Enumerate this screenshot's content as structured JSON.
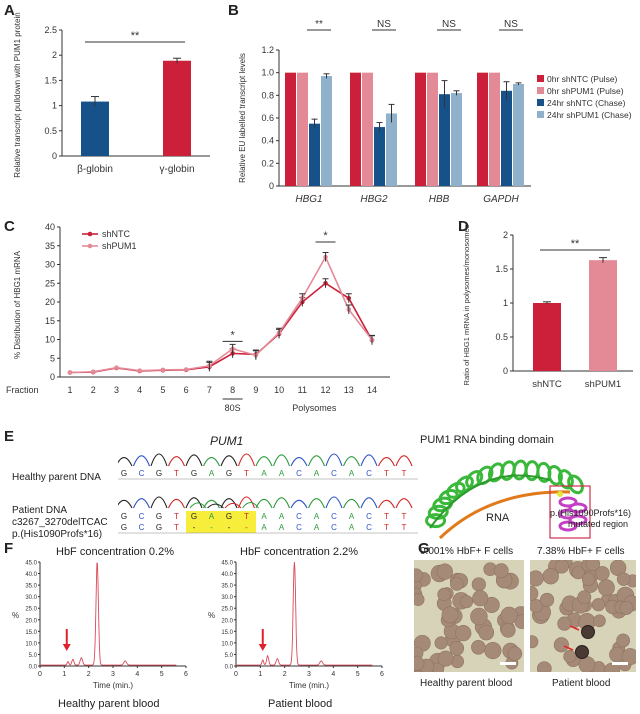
{
  "panels": {
    "A": {
      "letter": "A"
    },
    "B": {
      "letter": "B"
    },
    "C": {
      "letter": "C"
    },
    "D": {
      "letter": "D"
    },
    "E": {
      "letter": "E"
    },
    "F": {
      "letter": "F"
    },
    "G": {
      "letter": "G"
    }
  },
  "colors": {
    "red": "#cc1f3a",
    "pink": "#e48a97",
    "blue": "#17518a",
    "lightblue": "#8fb1cc",
    "chrom": "#d94b5a",
    "arrow": "#e0202a"
  },
  "chart_data": [
    {
      "id": "A",
      "type": "bar",
      "ylabel": "Relative transcript pulldown with PUM1 protein",
      "categories": [
        "β-globin",
        "γ-globin"
      ],
      "values": [
        1.08,
        1.89
      ],
      "errors": [
        0.1,
        0.05
      ],
      "bar_colors": [
        "#17518a",
        "#cc1f3a"
      ],
      "ylim": [
        0,
        2.5
      ],
      "yticks": [
        "0",
        "0.5",
        "1",
        "1.5",
        "2",
        "2.5"
      ],
      "significance": "**"
    },
    {
      "id": "B",
      "type": "bar",
      "ylabel": "Relative EU labelled transcript levels",
      "categories": [
        "HBG1",
        "HBG2",
        "HBB",
        "GAPDH"
      ],
      "series": [
        {
          "name": "0hr shNTC (Pulse)",
          "values": [
            1,
            1,
            1,
            1
          ],
          "errors": [
            0,
            0,
            0,
            0
          ]
        },
        {
          "name": "0hr shPUM1 (Pulse)",
          "values": [
            1,
            1,
            1,
            1
          ],
          "errors": [
            0,
            0,
            0,
            0
          ]
        },
        {
          "name": "24hr shNTC (Chase)",
          "values": [
            0.55,
            0.52,
            0.81,
            0.84
          ],
          "errors": [
            0.04,
            0.04,
            0.12,
            0.08
          ]
        },
        {
          "name": "24hr shPUM1 (Chase)",
          "values": [
            0.97,
            0.64,
            0.82,
            0.9
          ],
          "errors": [
            0.02,
            0.08,
            0.02,
            0.01
          ]
        }
      ],
      "ylim": [
        0,
        1.2
      ],
      "yticks": [
        "0",
        "0.2",
        "0.4",
        "0.6",
        "0.8",
        "1.0",
        "1.2"
      ],
      "significance": [
        "**",
        "NS",
        "NS",
        "NS"
      ]
    },
    {
      "id": "C",
      "type": "line",
      "ylabel": "% Distribution of HBG1 mRNA",
      "xlabel": "Fraction",
      "x": [
        1,
        2,
        3,
        4,
        5,
        6,
        7,
        8,
        9,
        10,
        11,
        12,
        13,
        14
      ],
      "series": [
        {
          "name": "shNTC",
          "values": [
            1.2,
            1.3,
            2.4,
            1.6,
            1.8,
            1.9,
            2.7,
            6.3,
            6.0,
            11.5,
            20.0,
            25.0,
            21.0,
            9.8
          ]
        },
        {
          "name": "shPUM1",
          "values": [
            1.2,
            1.4,
            2.5,
            1.7,
            1.9,
            2.0,
            3.0,
            7.5,
            5.8,
            11.8,
            21.0,
            32.0,
            18.0,
            9.9
          ]
        }
      ],
      "ylim": [
        0,
        40
      ],
      "yticks": [
        "0",
        "5",
        "10",
        "15",
        "20",
        "25",
        "30",
        "35",
        "40"
      ],
      "significance": [
        {
          "fraction": 8,
          "mark": "*"
        },
        {
          "fraction": 12,
          "mark": "*"
        }
      ],
      "annotations": {
        "monosome": "80S",
        "polysome": "Polysomes"
      }
    },
    {
      "id": "D",
      "type": "bar",
      "ylabel": "Ratio of HBG1 mRNA in polysomes/monosomes",
      "categories": [
        "shNTC",
        "shPUM1"
      ],
      "values": [
        1.0,
        1.63
      ],
      "errors": [
        0.01,
        0.03
      ],
      "bar_colors": [
        "#cc1f3a",
        "#e48a97"
      ],
      "ylim": [
        0,
        2.0
      ],
      "yticks": [
        "0",
        "0.5",
        "1",
        "1.5",
        "2"
      ],
      "significance": "**"
    },
    {
      "id": "F1",
      "type": "line",
      "title": "HbF concentration 0.2%",
      "ylabel": "%",
      "xlabel": "Time (min.)",
      "x": [
        0,
        1,
        2,
        3,
        4,
        5,
        6
      ],
      "ylim": [
        0,
        45
      ],
      "yticks": [
        "0.0",
        "2.5",
        "5.0",
        "7.5",
        "10.0",
        "12.5",
        "15.0",
        "17.5",
        "20.0",
        "22.5",
        "25.0",
        "27.5",
        "30.0",
        "32.5",
        "35.0",
        "37.5",
        "40.0",
        "42.5",
        "45.0"
      ],
      "xticks": [
        "0",
        "1",
        "2",
        "3",
        "4",
        "5",
        "6"
      ],
      "caption": "Healthy parent blood"
    },
    {
      "id": "F2",
      "type": "line",
      "title": "HbF concentration 2.2%",
      "ylabel": "%",
      "xlabel": "Time (min.)",
      "x": [
        0,
        1,
        2,
        3,
        4,
        5,
        6
      ],
      "ylim": [
        0,
        45
      ],
      "yticks": [
        "0.0",
        "2.5",
        "5.0",
        "7.5",
        "10.0",
        "12.5",
        "15.0",
        "17.5",
        "20.0",
        "22.5",
        "25.0",
        "27.5",
        "30.0",
        "32.5",
        "35.0",
        "37.5",
        "40.0",
        "42.5",
        "45.0"
      ],
      "xticks": [
        "0",
        "1",
        "2",
        "3",
        "4",
        "5",
        "6"
      ],
      "caption": "Patient blood"
    }
  ],
  "panelE": {
    "gene": "PUM1",
    "healthy_label": "Healthy parent DNA",
    "patient_label_1": "Patient DNA",
    "patient_label_2": "c3267_3270delTCAC",
    "patient_label_3": "p.(His1090Profs*16)",
    "seq_healthy": "GCGTGAGTAACACACTT",
    "seq_patient_1": "GCGTGAGTAACACACTT",
    "seq_patient_2": "GCGTGAGTAACACACTT",
    "domain_title": "PUM1 RNA binding domain",
    "rna_label": "RNA",
    "mut_label_1": "p.(His1090Profs*16)",
    "mut_label_2": "mutated region"
  },
  "panelG": {
    "left_title": "0.001% HbF+ F cells",
    "right_title": "7.38% HbF+ F cells",
    "left_caption": "Healthy parent blood",
    "right_caption": "Patient blood"
  }
}
